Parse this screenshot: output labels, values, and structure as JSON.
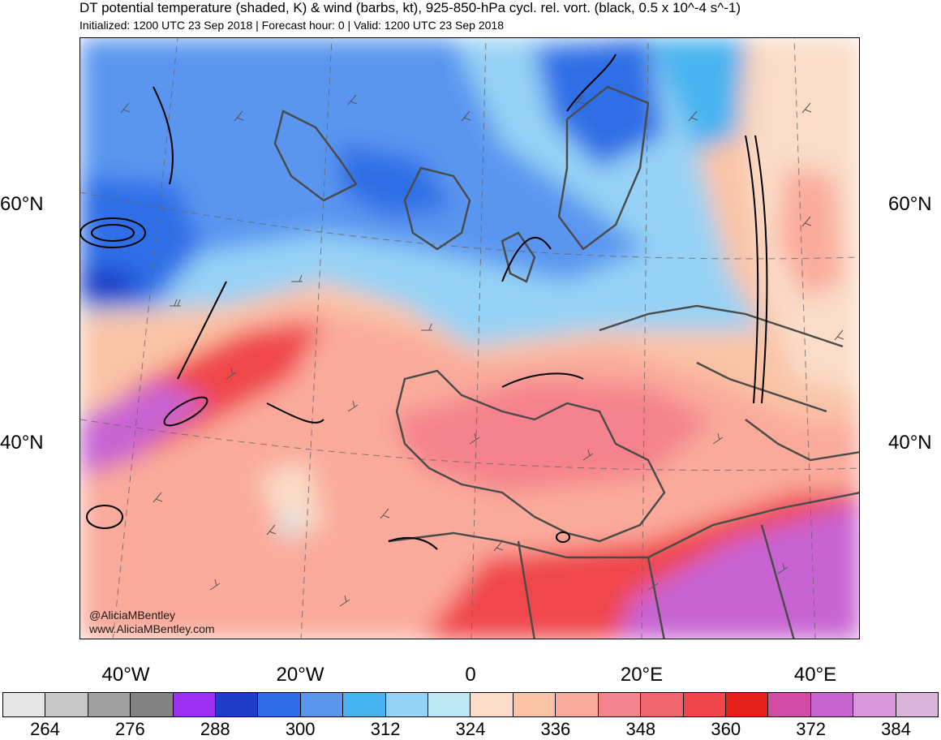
{
  "title": "DT potential temperature (shaded, K) & wind (barbs, kt), 925-850-hPa cycl. rel. vort. (black, 0.5 x 10^-4 s^-1)",
  "subtitle": "Initialized: 1200 UTC 23 Sep 2018 | Forecast hour: 0 | Valid: 1200 UTC 23 Sep 2018",
  "lat_labels": {
    "lat60_left": "60°N",
    "lat60_right": "60°N",
    "lat40_left": "40°N",
    "lat40_right": "40°N"
  },
  "lon_labels": {
    "w40": "40°W",
    "w20": "20°W",
    "zero": "0",
    "e20": "20°E",
    "e40": "40°E"
  },
  "credits": {
    "handle": "@AliciaMBentley",
    "site": "www.AliciaMBentley.com"
  },
  "colorbar": {
    "colors": [
      "#e6e6e6",
      "#c8c8c8",
      "#a0a0a0",
      "#828282",
      "#9b2ef0",
      "#1e3cc8",
      "#2d6ee6",
      "#5a96f0",
      "#46b4f0",
      "#96d2f5",
      "#bee8f5",
      "#fadcc8",
      "#fac3a5",
      "#faaa9b",
      "#f5828c",
      "#f0646e",
      "#f0464b",
      "#e61e19",
      "#d24ba5",
      "#c864d2",
      "#dc96dc",
      "#dcb4dc"
    ],
    "labels": [
      "264",
      "276",
      "288",
      "300",
      "312",
      "324",
      "336",
      "348",
      "360",
      "372",
      "384"
    ]
  }
}
